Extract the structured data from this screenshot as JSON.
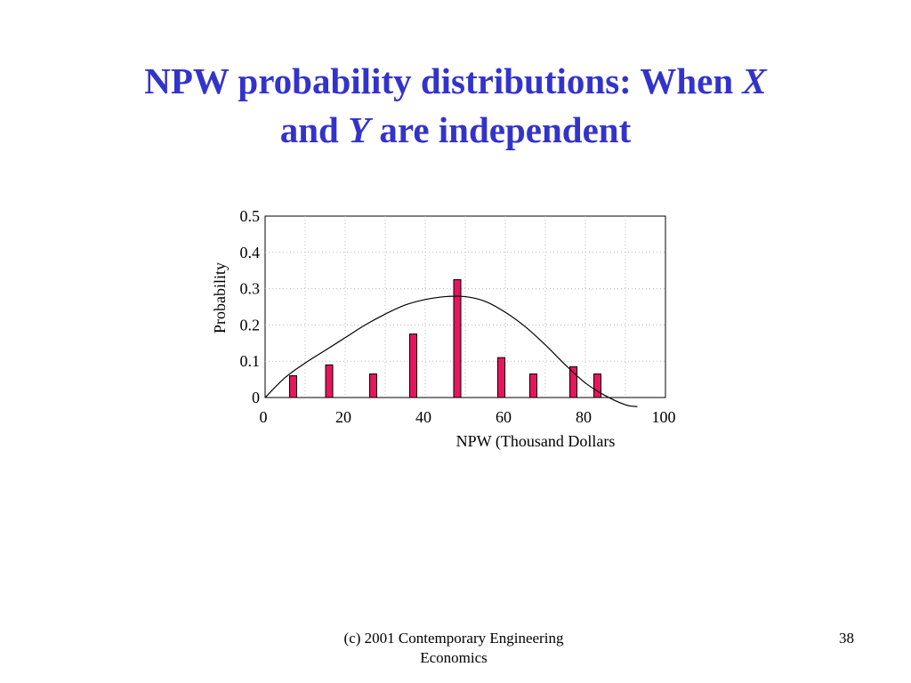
{
  "slide": {
    "title_part1": "NPW probability distributions:  When ",
    "title_var_x": "X",
    "title_part2": "and ",
    "title_var_y": "Y",
    "title_part3": " are independent",
    "footer_line1": "(c) 2001 Contemporary Engineering",
    "footer_line2": "Economics",
    "page_number": "38"
  },
  "colors": {
    "title": "#3333cc",
    "bar_fill": "#e6165e",
    "bar_stroke": "#000000",
    "grid": "#bbbbbb",
    "curve": "#000000"
  },
  "chart_data": {
    "type": "bar",
    "xlabel": "NPW (Thousand Dollars",
    "ylabel": "Probability",
    "xlim": [
      0,
      100
    ],
    "ylim": [
      0,
      0.5
    ],
    "xticks": [
      0,
      20,
      40,
      60,
      80,
      100
    ],
    "xtick_labels": [
      "0",
      "20",
      "40",
      "60",
      "80",
      "100"
    ],
    "yticks": [
      0,
      0.1,
      0.2,
      0.3,
      0.4,
      0.5
    ],
    "ytick_labels": [
      "0",
      "0.1",
      "0.2",
      "0.3",
      "0.4",
      "0.5"
    ],
    "grid": true,
    "bars": {
      "x": [
        7,
        16,
        27,
        37,
        48,
        59,
        67,
        77,
        83
      ],
      "values": [
        0.06,
        0.09,
        0.065,
        0.175,
        0.325,
        0.11,
        0.065,
        0.085,
        0.065
      ]
    },
    "curve": {
      "x": [
        0,
        5,
        10,
        15,
        20,
        25,
        30,
        35,
        40,
        45,
        50,
        55,
        60,
        65,
        70,
        75,
        80,
        85,
        90,
        93
      ],
      "y": [
        0.0,
        0.055,
        0.095,
        0.13,
        0.165,
        0.2,
        0.23,
        0.255,
        0.27,
        0.278,
        0.278,
        0.265,
        0.235,
        0.195,
        0.145,
        0.09,
        0.04,
        0.005,
        -0.02,
        -0.025
      ]
    }
  }
}
